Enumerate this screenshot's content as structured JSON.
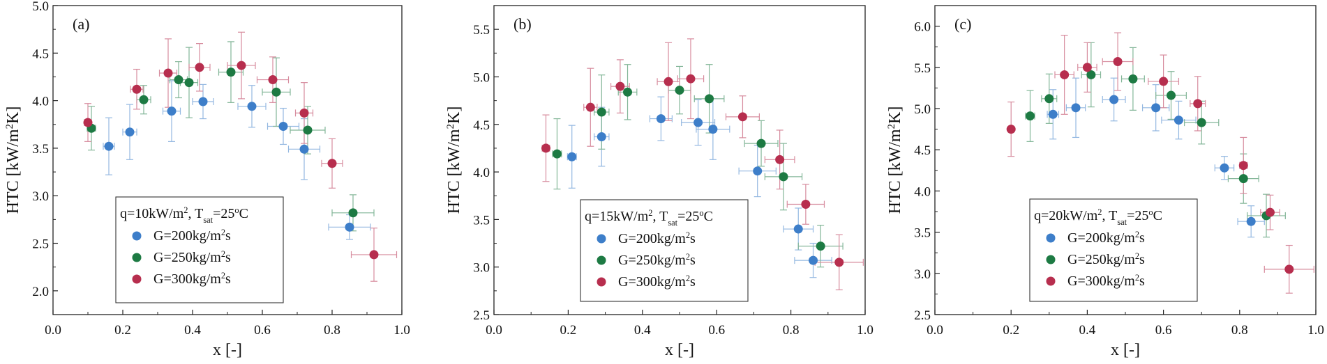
{
  "chart_data": [
    {
      "type": "scatter",
      "panel_label": "(a)",
      "xlabel": "x [-]",
      "ylabel": "HTC [kW/m²K]",
      "xlim": [
        0.0,
        1.0
      ],
      "ylim": [
        1.75,
        5.0
      ],
      "xticks": [
        "0.0",
        "0.2",
        "0.4",
        "0.6",
        "0.8",
        "1.0"
      ],
      "yticks": [
        "2.0",
        "2.5",
        "3.0",
        "3.5",
        "4.0",
        "4.5",
        "5.0"
      ],
      "legend": {
        "title": "q=10kW/m², T_sat=25°C",
        "title_parts": [
          "q=10kW/m",
          "2",
          ", T",
          "sat",
          "=25",
          "o",
          "C"
        ],
        "placement": "lower-middle"
      },
      "series": [
        {
          "name": "G=200kg/m²s",
          "name_parts": [
            "G=200kg/m",
            "2",
            "s"
          ],
          "color": "#3d7ec9",
          "points": [
            {
              "x": 0.16,
              "y": 3.52,
              "xerr": 0.016,
              "yerr": 0.3
            },
            {
              "x": 0.22,
              "y": 3.67,
              "xerr": 0.02,
              "yerr": 0.29
            },
            {
              "x": 0.34,
              "y": 3.89,
              "xerr": 0.025,
              "yerr": 0.32
            },
            {
              "x": 0.43,
              "y": 3.99,
              "xerr": 0.03,
              "yerr": 0.18
            },
            {
              "x": 0.57,
              "y": 3.94,
              "xerr": 0.04,
              "yerr": 0.22
            },
            {
              "x": 0.66,
              "y": 3.73,
              "xerr": 0.045,
              "yerr": 0.19
            },
            {
              "x": 0.72,
              "y": 3.49,
              "xerr": 0.045,
              "yerr": 0.32
            },
            {
              "x": 0.85,
              "y": 2.67,
              "xerr": 0.06,
              "yerr": 0.13
            }
          ]
        },
        {
          "name": "G=250kg/m²s",
          "name_parts": [
            "G=250kg/m",
            "2",
            "s"
          ],
          "color": "#1d7a43",
          "points": [
            {
              "x": 0.11,
              "y": 3.71,
              "xerr": 0.012,
              "yerr": 0.23
            },
            {
              "x": 0.26,
              "y": 4.01,
              "xerr": 0.02,
              "yerr": 0.15
            },
            {
              "x": 0.36,
              "y": 4.22,
              "xerr": 0.025,
              "yerr": 0.19
            },
            {
              "x": 0.39,
              "y": 4.19,
              "xerr": 0.025,
              "yerr": 0.37
            },
            {
              "x": 0.51,
              "y": 4.3,
              "xerr": 0.035,
              "yerr": 0.32
            },
            {
              "x": 0.64,
              "y": 4.09,
              "xerr": 0.04,
              "yerr": 0.36
            },
            {
              "x": 0.73,
              "y": 3.69,
              "xerr": 0.05,
              "yerr": 0.25
            },
            {
              "x": 0.86,
              "y": 2.82,
              "xerr": 0.06,
              "yerr": 0.19
            }
          ]
        },
        {
          "name": "G=300kg/m²s",
          "name_parts": [
            "G=300kg/m",
            "2",
            "s"
          ],
          "color": "#b72e4e",
          "points": [
            {
              "x": 0.1,
              "y": 3.77,
              "xerr": 0.01,
              "yerr": 0.2
            },
            {
              "x": 0.24,
              "y": 4.12,
              "xerr": 0.018,
              "yerr": 0.21
            },
            {
              "x": 0.33,
              "y": 4.29,
              "xerr": 0.025,
              "yerr": 0.36
            },
            {
              "x": 0.42,
              "y": 4.35,
              "xerr": 0.03,
              "yerr": 0.25
            },
            {
              "x": 0.54,
              "y": 4.37,
              "xerr": 0.04,
              "yerr": 0.35
            },
            {
              "x": 0.63,
              "y": 4.22,
              "xerr": 0.045,
              "yerr": 0.24
            },
            {
              "x": 0.72,
              "y": 3.87,
              "xerr": 0.025,
              "yerr": 0.32
            },
            {
              "x": 0.8,
              "y": 3.34,
              "xerr": 0.03,
              "yerr": 0.26
            },
            {
              "x": 0.92,
              "y": 2.38,
              "xerr": 0.065,
              "yerr": 0.28
            }
          ]
        }
      ]
    },
    {
      "type": "scatter",
      "panel_label": "(b)",
      "xlabel": "x [-]",
      "ylabel": "HTC [kW/m²K]",
      "xlim": [
        0.0,
        1.0
      ],
      "ylim": [
        2.5,
        5.75
      ],
      "xticks": [
        "0.0",
        "0.2",
        "0.4",
        "0.6",
        "0.8",
        "1.0"
      ],
      "yticks": [
        "2.5",
        "3.0",
        "3.5",
        "4.0",
        "4.5",
        "5.0",
        "5.5"
      ],
      "legend": {
        "title": "q=15kW/m², T_sat=25°C",
        "title_parts": [
          "q=15kW/m",
          "2",
          ", T",
          "sat",
          "=25",
          "o",
          "C"
        ],
        "placement": "lower-middle"
      },
      "series": [
        {
          "name": "G=200kg/m²s",
          "name_parts": [
            "G=200kg/m",
            "2",
            "s"
          ],
          "color": "#3d7ec9",
          "points": [
            {
              "x": 0.21,
              "y": 4.16,
              "xerr": 0.012,
              "yerr": 0.33
            },
            {
              "x": 0.29,
              "y": 4.37,
              "xerr": 0.02,
              "yerr": 0.31
            },
            {
              "x": 0.45,
              "y": 4.56,
              "xerr": 0.03,
              "yerr": 0.23
            },
            {
              "x": 0.55,
              "y": 4.52,
              "xerr": 0.045,
              "yerr": 0.24
            },
            {
              "x": 0.59,
              "y": 4.45,
              "xerr": 0.045,
              "yerr": 0.32
            },
            {
              "x": 0.71,
              "y": 4.01,
              "xerr": 0.05,
              "yerr": 0.27
            },
            {
              "x": 0.82,
              "y": 3.4,
              "xerr": 0.04,
              "yerr": 0.22
            },
            {
              "x": 0.86,
              "y": 3.07,
              "xerr": 0.05,
              "yerr": 0.18
            }
          ]
        },
        {
          "name": "G=250kg/m²s",
          "name_parts": [
            "G=250kg/m",
            "2",
            "s"
          ],
          "color": "#1d7a43",
          "points": [
            {
              "x": 0.17,
              "y": 4.19,
              "xerr": 0.012,
              "yerr": 0.37
            },
            {
              "x": 0.29,
              "y": 4.63,
              "xerr": 0.02,
              "yerr": 0.39
            },
            {
              "x": 0.36,
              "y": 4.84,
              "xerr": 0.025,
              "yerr": 0.29
            },
            {
              "x": 0.5,
              "y": 4.86,
              "xerr": 0.03,
              "yerr": 0.25
            },
            {
              "x": 0.58,
              "y": 4.77,
              "xerr": 0.04,
              "yerr": 0.36
            },
            {
              "x": 0.72,
              "y": 4.3,
              "xerr": 0.045,
              "yerr": 0.24
            },
            {
              "x": 0.78,
              "y": 3.95,
              "xerr": 0.05,
              "yerr": 0.35
            },
            {
              "x": 0.88,
              "y": 3.22,
              "xerr": 0.06,
              "yerr": 0.22
            }
          ]
        },
        {
          "name": "G=300kg/m²s",
          "name_parts": [
            "G=300kg/m",
            "2",
            "s"
          ],
          "color": "#b72e4e",
          "points": [
            {
              "x": 0.14,
              "y": 4.25,
              "xerr": 0.01,
              "yerr": 0.35
            },
            {
              "x": 0.26,
              "y": 4.68,
              "xerr": 0.018,
              "yerr": 0.41
            },
            {
              "x": 0.34,
              "y": 4.9,
              "xerr": 0.025,
              "yerr": 0.28
            },
            {
              "x": 0.47,
              "y": 4.95,
              "xerr": 0.03,
              "yerr": 0.41
            },
            {
              "x": 0.53,
              "y": 4.98,
              "xerr": 0.035,
              "yerr": 0.42
            },
            {
              "x": 0.67,
              "y": 4.58,
              "xerr": 0.045,
              "yerr": 0.22
            },
            {
              "x": 0.77,
              "y": 4.13,
              "xerr": 0.04,
              "yerr": 0.31
            },
            {
              "x": 0.84,
              "y": 3.66,
              "xerr": 0.05,
              "yerr": 0.21
            },
            {
              "x": 0.93,
              "y": 3.05,
              "xerr": 0.065,
              "yerr": 0.29
            }
          ]
        }
      ]
    },
    {
      "type": "scatter",
      "panel_label": "(c)",
      "xlabel": "x [-]",
      "ylabel": "HTC [kW/m²K]",
      "xlim": [
        0.0,
        1.0
      ],
      "ylim": [
        2.5,
        6.25
      ],
      "xticks": [
        "0.0",
        "0.2",
        "0.4",
        "0.6",
        "0.8",
        "1.0"
      ],
      "yticks": [
        "2.5",
        "3.0",
        "3.5",
        "4.0",
        "4.5",
        "5.0",
        "5.5",
        "6.0"
      ],
      "legend": {
        "title": "q=20kW/m², T_sat=25°C",
        "title_parts": [
          "q=20kW/m",
          "2",
          ", T",
          "sat",
          "=25",
          "o",
          "C"
        ],
        "placement": "lower-middle"
      },
      "series": [
        {
          "name": "G=200kg/m²s",
          "name_parts": [
            "G=200kg/m",
            "2",
            "s"
          ],
          "color": "#3d7ec9",
          "points": [
            {
              "x": 0.31,
              "y": 4.93,
              "xerr": 0.015,
              "yerr": 0.3
            },
            {
              "x": 0.37,
              "y": 5.01,
              "xerr": 0.025,
              "yerr": 0.36
            },
            {
              "x": 0.47,
              "y": 5.11,
              "xerr": 0.03,
              "yerr": 0.26
            },
            {
              "x": 0.58,
              "y": 5.01,
              "xerr": 0.035,
              "yerr": 0.28
            },
            {
              "x": 0.64,
              "y": 4.86,
              "xerr": 0.045,
              "yerr": 0.23
            },
            {
              "x": 0.76,
              "y": 4.28,
              "xerr": 0.025,
              "yerr": 0.14
            },
            {
              "x": 0.83,
              "y": 3.63,
              "xerr": 0.035,
              "yerr": 0.19
            }
          ]
        },
        {
          "name": "G=250kg/m²s",
          "name_parts": [
            "G=250kg/m",
            "2",
            "s"
          ],
          "color": "#1d7a43",
          "points": [
            {
              "x": 0.25,
              "y": 4.91,
              "xerr": 0.012,
              "yerr": 0.31
            },
            {
              "x": 0.3,
              "y": 5.12,
              "xerr": 0.02,
              "yerr": 0.3
            },
            {
              "x": 0.41,
              "y": 5.41,
              "xerr": 0.025,
              "yerr": 0.39
            },
            {
              "x": 0.52,
              "y": 5.36,
              "xerr": 0.03,
              "yerr": 0.38
            },
            {
              "x": 0.62,
              "y": 5.16,
              "xerr": 0.04,
              "yerr": 0.29
            },
            {
              "x": 0.7,
              "y": 4.83,
              "xerr": 0.045,
              "yerr": 0.26
            },
            {
              "x": 0.81,
              "y": 4.15,
              "xerr": 0.04,
              "yerr": 0.3
            },
            {
              "x": 0.87,
              "y": 3.7,
              "xerr": 0.05,
              "yerr": 0.26
            }
          ]
        },
        {
          "name": "G=300kg/m²s",
          "name_parts": [
            "G=300kg/m",
            "2",
            "s"
          ],
          "color": "#b72e4e",
          "points": [
            {
              "x": 0.2,
              "y": 4.75,
              "xerr": 0.005,
              "yerr": 0.33
            },
            {
              "x": 0.34,
              "y": 5.41,
              "xerr": 0.025,
              "yerr": 0.48
            },
            {
              "x": 0.4,
              "y": 5.5,
              "xerr": 0.025,
              "yerr": 0.3
            },
            {
              "x": 0.48,
              "y": 5.57,
              "xerr": 0.04,
              "yerr": 0.35
            },
            {
              "x": 0.6,
              "y": 5.33,
              "xerr": 0.04,
              "yerr": 0.32
            },
            {
              "x": 0.69,
              "y": 5.06,
              "xerr": 0.02,
              "yerr": 0.33
            },
            {
              "x": 0.81,
              "y": 4.31,
              "xerr": 0.01,
              "yerr": 0.34
            },
            {
              "x": 0.88,
              "y": 3.74,
              "xerr": 0.025,
              "yerr": 0.21
            },
            {
              "x": 0.93,
              "y": 3.05,
              "xerr": 0.065,
              "yerr": 0.29
            }
          ]
        }
      ]
    }
  ]
}
